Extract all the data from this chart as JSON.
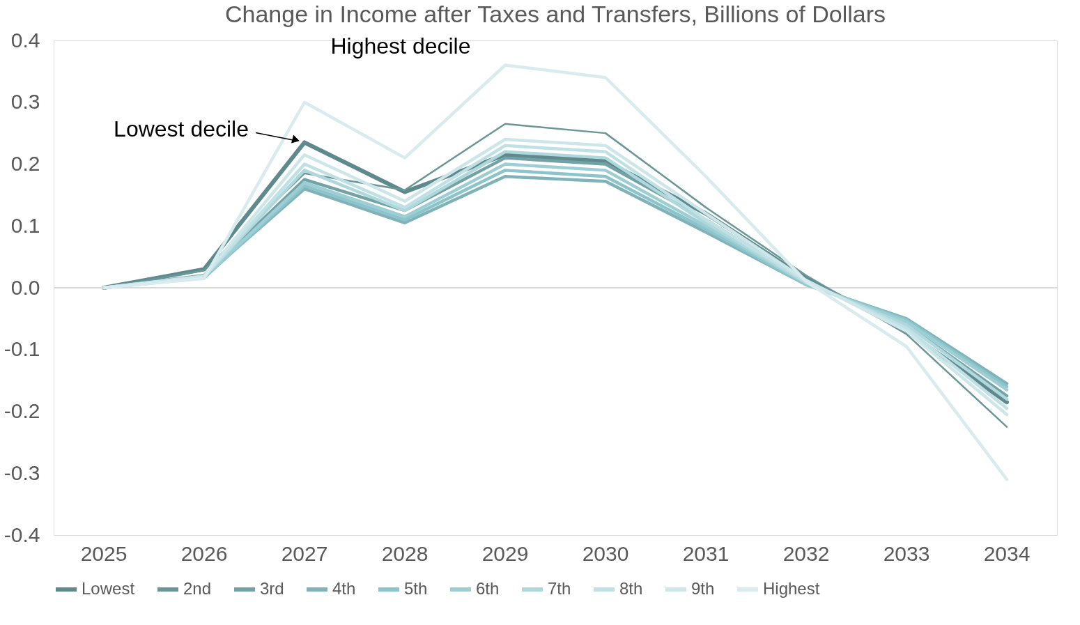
{
  "chart_data": {
    "type": "line",
    "title": "Change in Income after Taxes and Transfers, Billions of Dollars",
    "categories": [
      "2025",
      "2026",
      "2027",
      "2028",
      "2029",
      "2030",
      "2031",
      "2032",
      "2033",
      "2034"
    ],
    "series": [
      {
        "name": "Lowest",
        "color": "#5f8a8d",
        "values": [
          0,
          0.03,
          0.235,
          0.155,
          0.215,
          0.205,
          0.12,
          0.015,
          -0.07,
          -0.185
        ]
      },
      {
        "name": "2nd",
        "color": "#6a9699",
        "values": [
          0,
          0.028,
          0.185,
          0.158,
          0.265,
          0.25,
          0.13,
          0.02,
          -0.075,
          -0.225
        ]
      },
      {
        "name": "3rd",
        "color": "#73a2a6",
        "values": [
          0,
          0.02,
          0.175,
          0.125,
          0.21,
          0.2,
          0.11,
          0.01,
          -0.06,
          -0.175
        ]
      },
      {
        "name": "4th",
        "color": "#7fb3b9",
        "values": [
          0,
          0.018,
          0.16,
          0.105,
          0.18,
          0.172,
          0.09,
          0.005,
          -0.05,
          -0.155
        ]
      },
      {
        "name": "5th",
        "color": "#8bc4cb",
        "values": [
          0,
          0.016,
          0.165,
          0.11,
          0.19,
          0.18,
          0.095,
          0.005,
          -0.052,
          -0.16
        ]
      },
      {
        "name": "6th",
        "color": "#9dced4",
        "values": [
          0,
          0.017,
          0.17,
          0.115,
          0.2,
          0.19,
          0.1,
          0.007,
          -0.055,
          -0.165
        ]
      },
      {
        "name": "7th",
        "color": "#afd8dd",
        "values": [
          0,
          0.018,
          0.19,
          0.125,
          0.22,
          0.21,
          0.105,
          0.008,
          -0.06,
          -0.18
        ]
      },
      {
        "name": "8th",
        "color": "#bfe0e4",
        "values": [
          0,
          0.018,
          0.2,
          0.13,
          0.23,
          0.22,
          0.11,
          0.01,
          -0.065,
          -0.195
        ]
      },
      {
        "name": "9th",
        "color": "#cce6ea",
        "values": [
          0,
          0.019,
          0.215,
          0.14,
          0.24,
          0.23,
          0.12,
          0.012,
          -0.07,
          -0.205
        ]
      },
      {
        "name": "Highest",
        "color": "#d8ebee",
        "values": [
          0,
          0.015,
          0.3,
          0.21,
          0.36,
          0.34,
          0.18,
          0.01,
          -0.095,
          -0.31
        ]
      }
    ],
    "ylim": [
      -0.4,
      0.4
    ],
    "yticks": [
      {
        "value": -0.4,
        "label": "-0.4"
      },
      {
        "value": -0.3,
        "label": "-0.3"
      },
      {
        "value": -0.2,
        "label": "-0.2"
      },
      {
        "value": -0.1,
        "label": "-0.1"
      },
      {
        "value": 0,
        "label": "0.0"
      },
      {
        "value": 0.1,
        "label": "0.1"
      },
      {
        "value": 0.2,
        "label": "0.2"
      },
      {
        "value": 0.3,
        "label": "0.3"
      },
      {
        "value": 0.4,
        "label": "0.4"
      }
    ],
    "ref_lines": [
      {
        "axis": "y",
        "value": 0,
        "color": "#d9d9d9"
      }
    ],
    "annotations": [
      {
        "text": "Highest decile",
        "x": "2029",
        "y": 0.36
      },
      {
        "text": "Lowest decile",
        "x": "2027",
        "y": 0.235
      }
    ],
    "grid": false,
    "legend": "bottom",
    "marker": "none",
    "line_style": "solid"
  }
}
